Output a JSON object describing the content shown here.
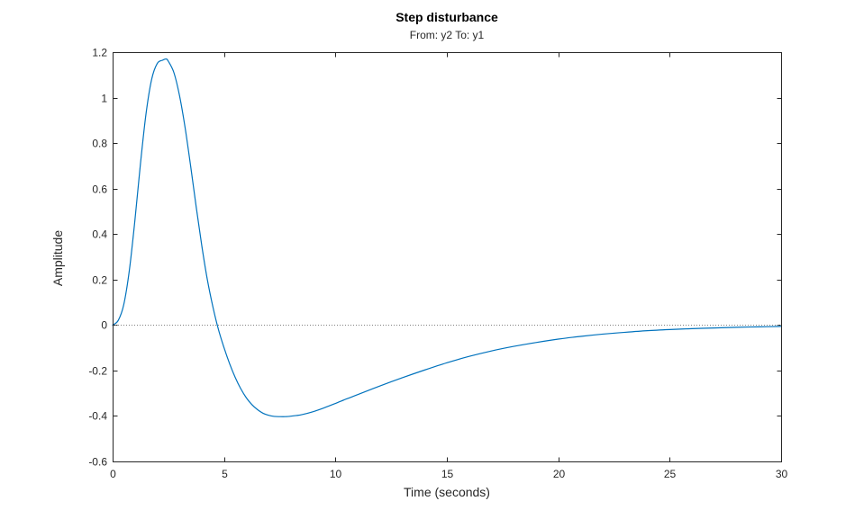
{
  "chart_data": {
    "type": "line",
    "title": "Step disturbance",
    "subtitle": "From: y2  To: y1",
    "xlabel": "Time (seconds)",
    "ylabel": "Amplitude",
    "xlim": [
      0,
      30
    ],
    "ylim": [
      -0.6,
      1.2
    ],
    "xticks": [
      0,
      5,
      10,
      15,
      20,
      25,
      30
    ],
    "xtick_labels": [
      "0",
      "5",
      "10",
      "15",
      "20",
      "25",
      "30"
    ],
    "yticks": [
      -0.6,
      -0.4,
      -0.2,
      0,
      0.2,
      0.4,
      0.6,
      0.8,
      1,
      1.2
    ],
    "ytick_labels": [
      "-0.6",
      "-0.4",
      "-0.2",
      "0",
      "0.2",
      "0.4",
      "0.6",
      "0.8",
      "1",
      "1.2"
    ],
    "grid": false,
    "reference_line": {
      "y": 0,
      "style": "dotted",
      "color": "#808080"
    },
    "series": [
      {
        "color": "#0072BD",
        "x": [
          0,
          0.25,
          0.5,
          0.75,
          1.0,
          1.25,
          1.5,
          1.75,
          2.0,
          2.25,
          2.4,
          2.5,
          2.75,
          3.0,
          3.25,
          3.5,
          3.75,
          4.0,
          4.25,
          4.5,
          4.75,
          5.0,
          5.25,
          5.5,
          5.75,
          6.0,
          6.25,
          6.5,
          6.75,
          7.0,
          7.25,
          7.5,
          7.75,
          8.0,
          8.25,
          8.5,
          9.0,
          9.5,
          10,
          10.5,
          11,
          12,
          13,
          14,
          15,
          16,
          17,
          18,
          19,
          20,
          21,
          22,
          23,
          24,
          25,
          26,
          27,
          28,
          29,
          30
        ],
        "y": [
          0,
          0.02,
          0.09,
          0.24,
          0.46,
          0.71,
          0.93,
          1.08,
          1.15,
          1.165,
          1.17,
          1.16,
          1.11,
          1.01,
          0.87,
          0.7,
          0.52,
          0.35,
          0.2,
          0.08,
          -0.02,
          -0.1,
          -0.17,
          -0.23,
          -0.28,
          -0.32,
          -0.35,
          -0.372,
          -0.388,
          -0.397,
          -0.402,
          -0.403,
          -0.403,
          -0.401,
          -0.398,
          -0.394,
          -0.381,
          -0.364,
          -0.345,
          -0.325,
          -0.306,
          -0.268,
          -0.232,
          -0.198,
          -0.166,
          -0.138,
          -0.114,
          -0.094,
          -0.077,
          -0.062,
          -0.05,
          -0.04,
          -0.032,
          -0.025,
          -0.02,
          -0.016,
          -0.013,
          -0.01,
          -0.008,
          -0.006
        ]
      }
    ]
  }
}
